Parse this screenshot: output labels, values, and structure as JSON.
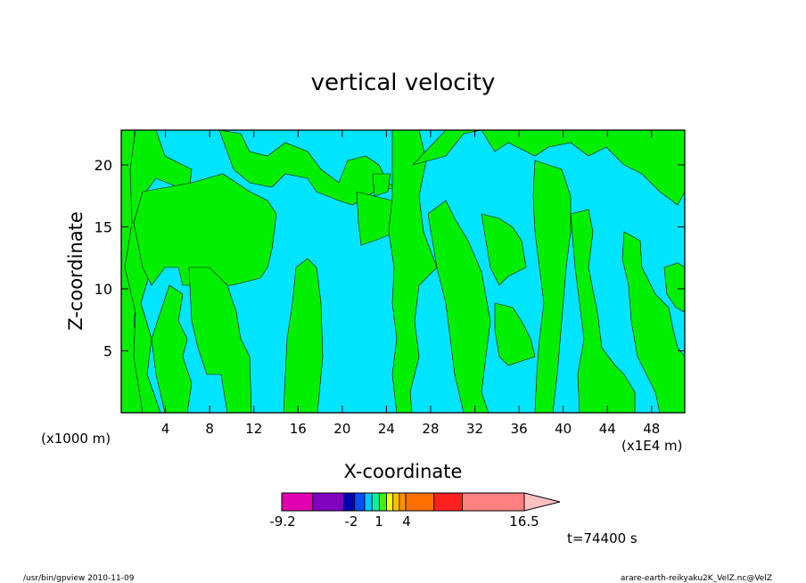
{
  "chart_data": {
    "type": "heatmap",
    "title": "vertical velocity",
    "xlabel": "X-coordinate",
    "ylabel": "Z-coordinate",
    "x_unit_left": "(x1000 m)",
    "x_unit_right": "(x1E4 m)",
    "xlim": [
      0,
      51
    ],
    "ylim": [
      0,
      22.8
    ],
    "x_ticks": [
      4,
      8,
      12,
      16,
      20,
      24,
      28,
      32,
      36,
      40,
      44,
      48
    ],
    "y_ticks": [
      5,
      10,
      15,
      20
    ],
    "field_colors": {
      "negative": "#00e5ff",
      "positive": "#00f000"
    },
    "colorbar": {
      "tick_labels": [
        "-9.2",
        "-2",
        "1",
        "4",
        "16.5"
      ],
      "segments": [
        "#e000b0",
        "#8000c0",
        "#0000b0",
        "#0050ff",
        "#00c8ff",
        "#00f0a0",
        "#40f000",
        "#ffff00",
        "#ffc000",
        "#ff9000",
        "#ff7000",
        "#ff2020",
        "#ff8080"
      ],
      "arrow_color": "#ffc0c0"
    },
    "time_label": "t=74400 s"
  },
  "footer": {
    "left": "/usr/bin/gpview   2010-11-09",
    "right": "arare-earth-reikyaku2K_VelZ.nc@VelZ"
  }
}
